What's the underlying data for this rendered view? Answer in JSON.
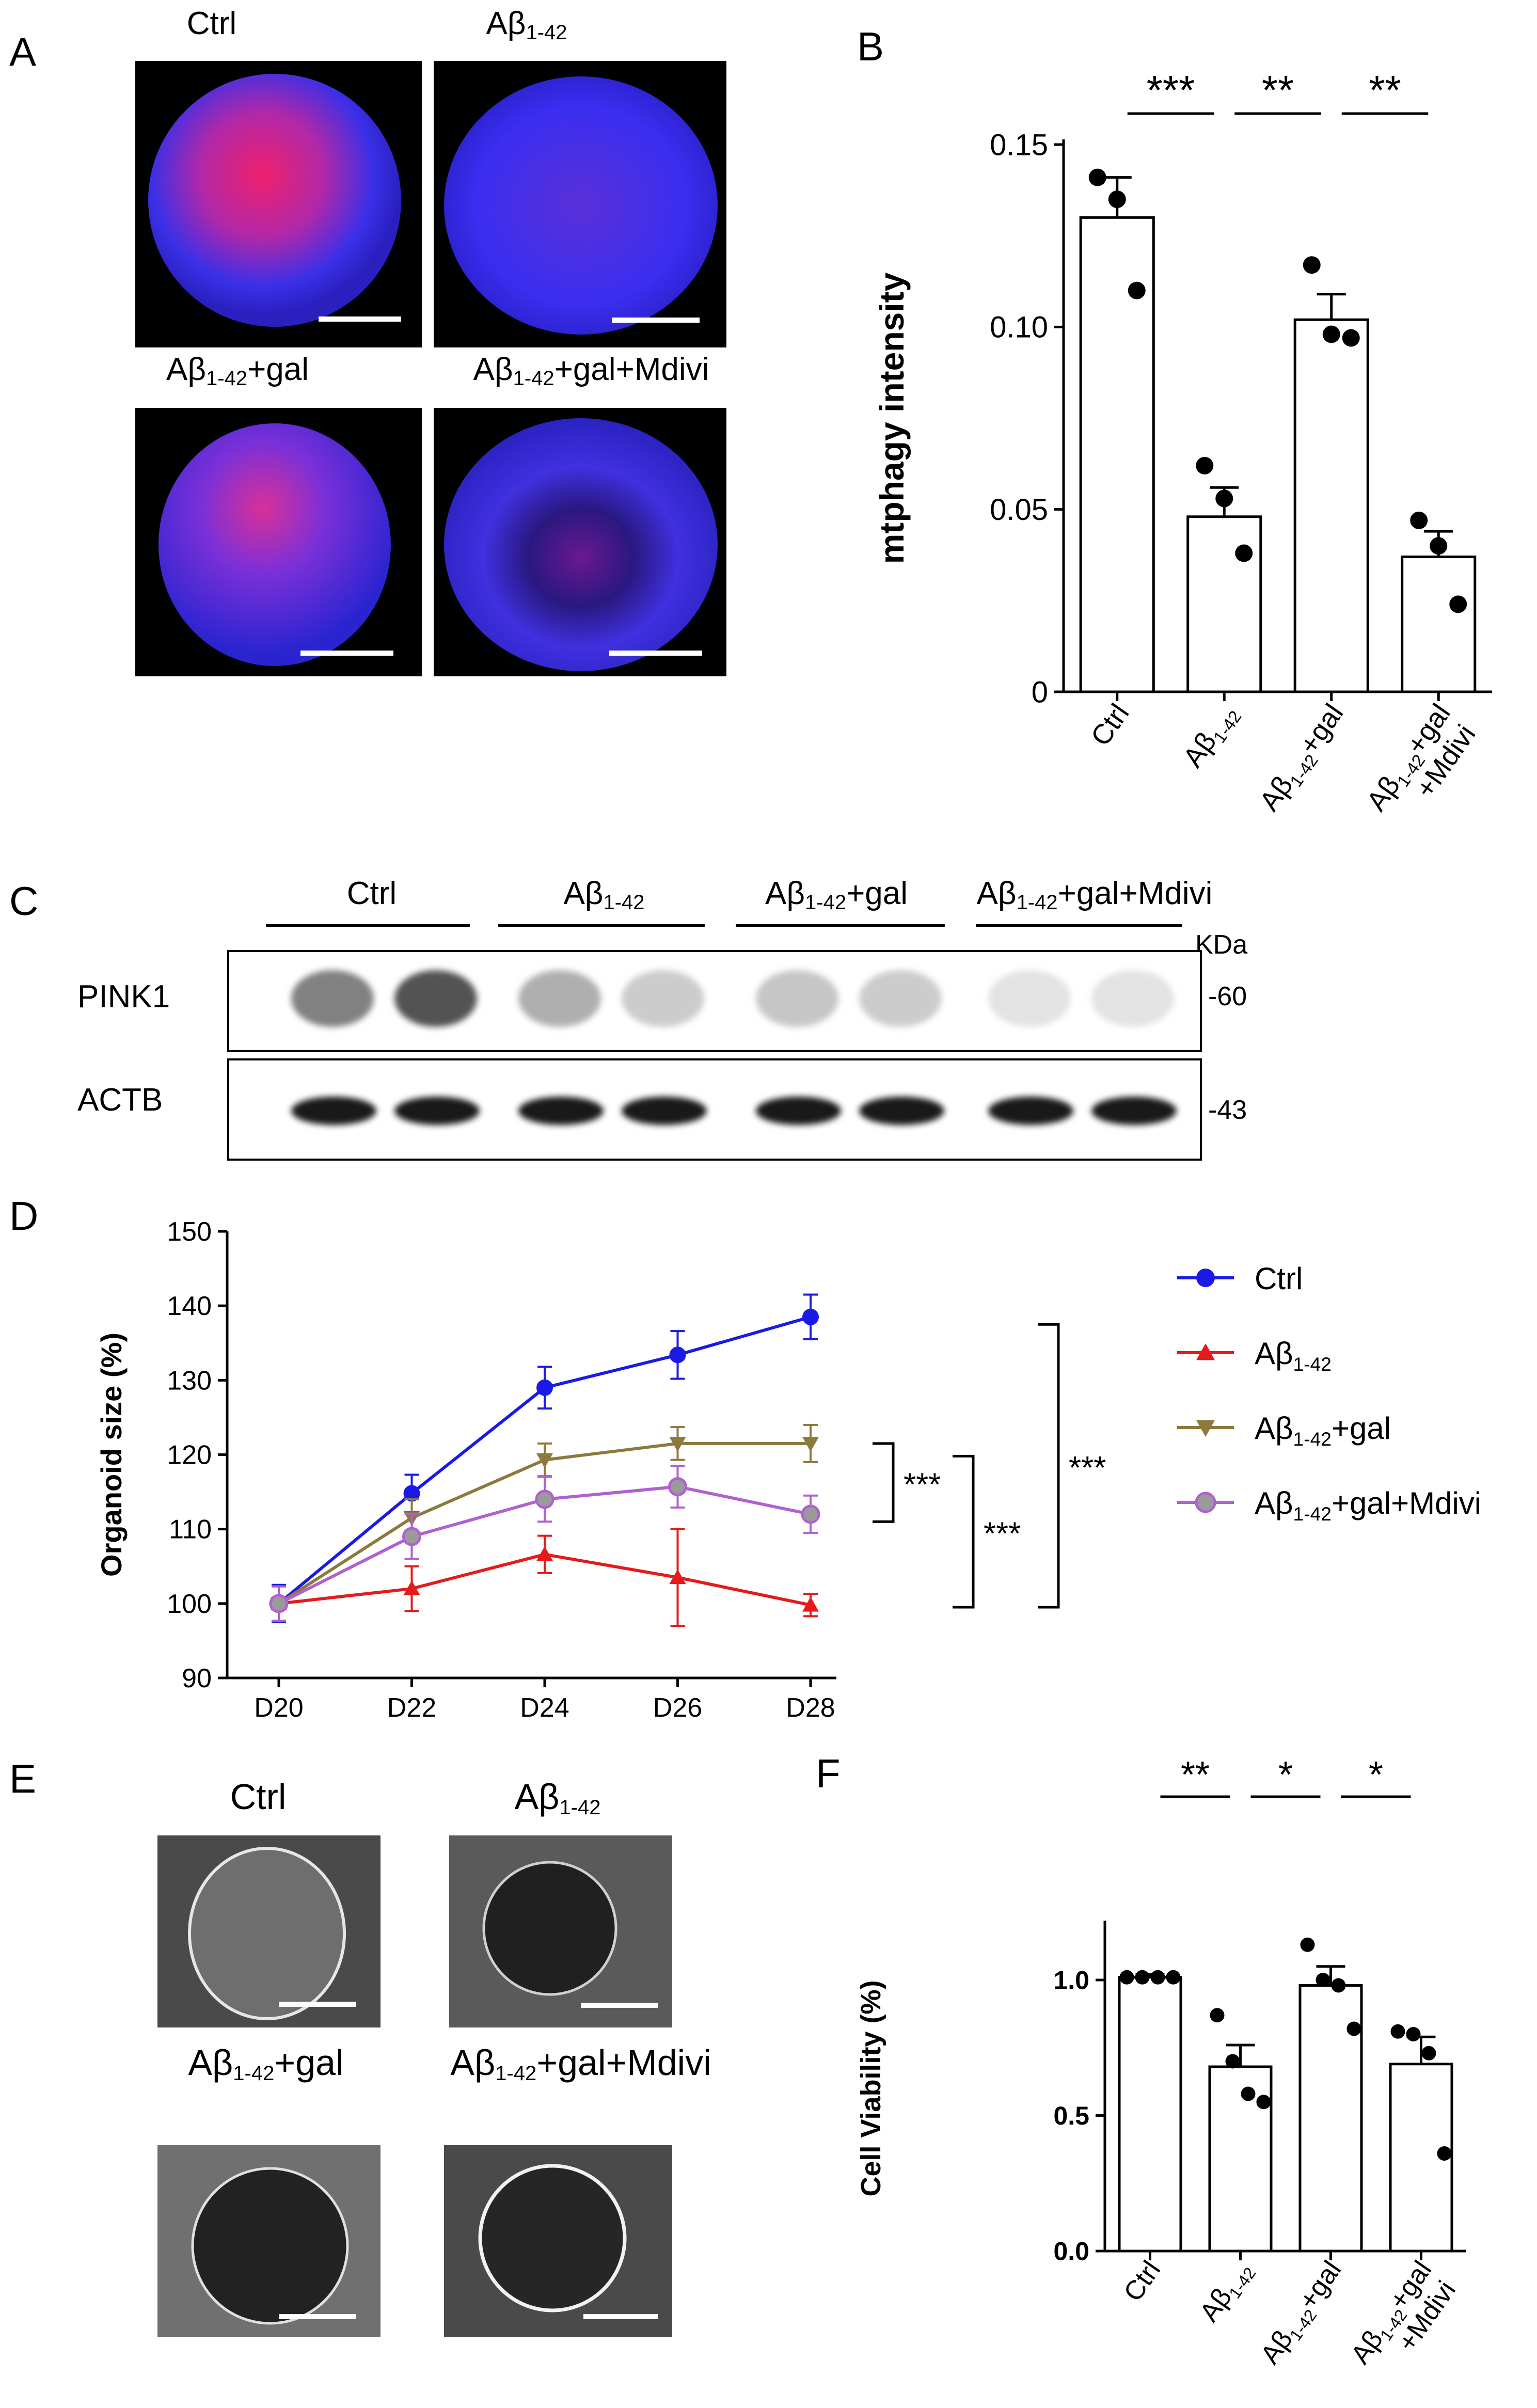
{
  "panels": {
    "A": "A",
    "B": "B",
    "C": "C",
    "D": "D",
    "E": "E",
    "F": "F"
  },
  "abeta": "Aβ",
  "sub142": "1-42",
  "gal": "+gal",
  "galmdivi": "+gal+Mdivi",
  "ctrl": "Ctrl",
  "mdivi_line": "+Mdivi",
  "panelA": {
    "labels": [
      "Ctrl",
      "Aβ1-42",
      "Aβ1-42+gal",
      "Aβ1-42+gal+Mdivi"
    ]
  },
  "panelC": {
    "groups": [
      "Ctrl",
      "Aβ1-42",
      "Aβ1-42+gal",
      "Aβ1-42+gal+Mdivi"
    ],
    "kda": "KDa",
    "pink1": "PINK1",
    "actb": "ACTB",
    "mw60": "-60",
    "mw43": "-43",
    "pink1_intensity": [
      0.55,
      0.75,
      0.35,
      0.22,
      0.25,
      0.22,
      0.12,
      0.12
    ],
    "actb_intensity": [
      1,
      1,
      1,
      1,
      1,
      1,
      1,
      1
    ]
  },
  "panelE": {
    "labels": [
      "Ctrl",
      "Aβ1-42",
      "Aβ1-42+gal",
      "Aβ1-42+gal+Mdivi"
    ]
  },
  "chart_data": [
    {
      "panel": "B",
      "type": "bar",
      "categories": [
        "Ctrl",
        "Aβ1-42",
        "Aβ1-42+gal",
        "Aβ1-42+gal+Mdivi"
      ],
      "values": [
        0.13,
        0.048,
        0.102,
        0.037
      ],
      "errors": [
        0.011,
        0.008,
        0.007,
        0.007
      ],
      "points": [
        [
          0.141,
          0.135,
          0.11
        ],
        [
          0.062,
          0.053,
          0.038
        ],
        [
          0.117,
          0.098,
          0.097
        ],
        [
          0.047,
          0.04,
          0.024
        ]
      ],
      "ylabel": "mtphagy intensity",
      "ylim": [
        0,
        0.15
      ],
      "yticks": [
        "0",
        "0.05",
        "0.10",
        "0.15"
      ],
      "significance": [
        "***",
        "**",
        "**"
      ]
    },
    {
      "panel": "D",
      "type": "line",
      "x": [
        "D20",
        "D22",
        "D24",
        "D26",
        "D28"
      ],
      "ylabel": "Organoid size (%)",
      "ylim": [
        90,
        150
      ],
      "yticks": [
        "90",
        "100",
        "110",
        "120",
        "130",
        "140",
        "150"
      ],
      "series": [
        {
          "name": "Ctrl",
          "color": "#1a1ae6",
          "marker": "circle",
          "values": [
            100,
            114.8,
            129,
            133.4,
            138.5
          ],
          "errors": [
            2.5,
            2.5,
            2.8,
            3.2,
            3.0
          ]
        },
        {
          "name": "Aβ1-42",
          "color": "#e61a1a",
          "marker": "triangle-up",
          "values": [
            100,
            102,
            106.6,
            103.5,
            99.8
          ],
          "errors": [
            2.3,
            3.0,
            2.5,
            6.5,
            1.5
          ]
        },
        {
          "name": "Aβ1-42+gal",
          "color": "#8c7a3c",
          "marker": "triangle-down",
          "values": [
            100,
            111.5,
            119.3,
            121.5,
            121.5
          ],
          "errors": [
            2.3,
            2.5,
            2.2,
            2.2,
            2.5
          ]
        },
        {
          "name": "Aβ1-42+gal+Mdivi",
          "color": "#b060d0",
          "marker": "circle-gray",
          "values": [
            100,
            109,
            114,
            115.7,
            112
          ],
          "errors": [
            2.3,
            3.0,
            3.0,
            2.8,
            2.5
          ]
        }
      ],
      "significance": [
        "***",
        "***",
        "***"
      ]
    },
    {
      "panel": "F",
      "type": "bar",
      "categories": [
        "Ctrl",
        "Aβ1-42",
        "Aβ1-42+gal",
        "Aβ1-42+gal+Mdivi"
      ],
      "values": [
        1.01,
        0.68,
        0.98,
        0.69
      ],
      "errors": [
        0.01,
        0.08,
        0.07,
        0.1
      ],
      "points": [
        [
          1.01,
          1.01,
          1.01,
          1.01
        ],
        [
          0.87,
          0.7,
          0.58,
          0.55
        ],
        [
          1.13,
          1.0,
          0.98,
          0.82
        ],
        [
          0.81,
          0.8,
          0.73,
          0.36
        ]
      ],
      "ylabel": "Cell Viability (%)",
      "ylim": [
        0,
        1.2
      ],
      "yticks": [
        "0.0",
        "0.5",
        "1.0"
      ],
      "significance": [
        "**",
        "*",
        "*"
      ]
    }
  ]
}
